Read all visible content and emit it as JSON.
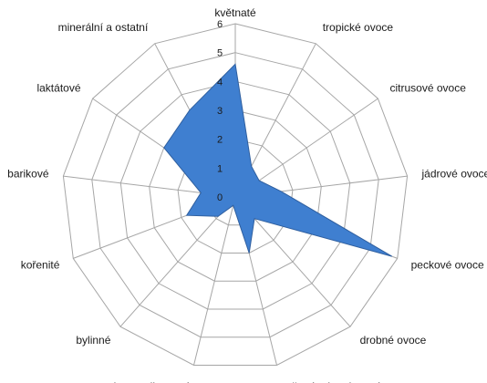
{
  "chart_data": {
    "type": "radar",
    "categories": [
      "květnaté",
      "tropické ovoce",
      "citrusové ovoce",
      "jádrové ovoce",
      "peckové ovoce",
      "drobné ovoce",
      "sušené a kandované ovoce",
      "karamelizované",
      "bylinné",
      "kořenité",
      "barikové",
      "laktátové",
      "minerální a ostatní"
    ],
    "series": [
      {
        "values": [
          4.6,
          1.2,
          1.0,
          1.6,
          5.8,
          1.0,
          2.0,
          0.3,
          0.9,
          1.8,
          1.2,
          3.0,
          3.4
        ]
      }
    ],
    "rlim": [
      0,
      6
    ],
    "ticks": [
      "0",
      "1",
      "2",
      "3",
      "4",
      "5",
      "6"
    ],
    "grid": true,
    "legend": "none",
    "colors": {
      "fill": "#3f7fd0",
      "stroke": "#2f5f9f",
      "grid": "#a6a6a6"
    }
  }
}
